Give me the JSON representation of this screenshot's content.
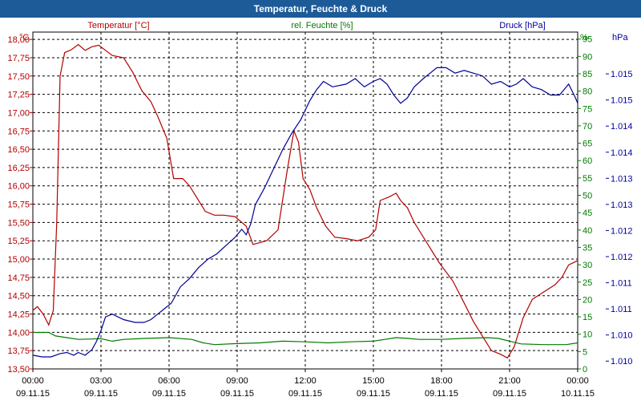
{
  "window": {
    "title": "Temperatur, Feuchte & Druck"
  },
  "chart_data": {
    "type": "line",
    "title": "Temperatur, Feuchte & Druck",
    "colors": {
      "temperature": "#b30000",
      "humidity": "#007a00",
      "pressure": "#00009c",
      "grid": "#000000"
    },
    "x_ticks": [
      {
        "time": "00:00",
        "date": "09.11.15"
      },
      {
        "time": "03:00",
        "date": "09.11.15"
      },
      {
        "time": "06:00",
        "date": "09.11.15"
      },
      {
        "time": "09:00",
        "date": "09.11.15"
      },
      {
        "time": "12:00",
        "date": "09.11.15"
      },
      {
        "time": "15:00",
        "date": "09.11.15"
      },
      {
        "time": "18:00",
        "date": "09.11.15"
      },
      {
        "time": "21:00",
        "date": "09.11.15"
      },
      {
        "time": "00:00",
        "date": "10.11.15"
      }
    ],
    "xlim_hours": [
      0,
      24
    ],
    "axes": {
      "temperature": {
        "label": "Temperatur [°C]",
        "unit": "°C",
        "min": 13.5,
        "max": 18.1,
        "ticks": [
          "13,50",
          "13,75",
          "14,00",
          "14,25",
          "14,50",
          "14,75",
          "15,00",
          "15,25",
          "15,50",
          "15,75",
          "16,00",
          "16,25",
          "16,50",
          "16,75",
          "17,00",
          "17,25",
          "17,50",
          "17,75",
          "18,00"
        ]
      },
      "humidity": {
        "label": "rel. Feuchte [%]",
        "unit": "%",
        "min": 0,
        "max": 97,
        "ticks": [
          "0",
          "5",
          "10",
          "15",
          "20",
          "25",
          "30",
          "35",
          "40",
          "45",
          "50",
          "55",
          "60",
          "65",
          "70",
          "75",
          "80",
          "85",
          "90",
          "95"
        ]
      },
      "pressure": {
        "label": "Druck [hPa]",
        "unit": "hPa",
        "min": 1009.6,
        "max": 1015.75,
        "ticks": [
          "1.010",
          "1.010",
          "1.011",
          "1.011",
          "1.012",
          "1.012",
          "1.013",
          "1.013",
          "1.014",
          "1.014",
          "1.015",
          "1.015"
        ]
      }
    },
    "series": [
      {
        "name": "Temperatur",
        "axis": "temperature",
        "points": [
          [
            0,
            14.3
          ],
          [
            0.2,
            14.35
          ],
          [
            0.45,
            14.25
          ],
          [
            0.7,
            14.1
          ],
          [
            0.9,
            14.3
          ],
          [
            1.05,
            15.5
          ],
          [
            1.2,
            17.5
          ],
          [
            1.4,
            17.82
          ],
          [
            1.7,
            17.86
          ],
          [
            2.0,
            17.93
          ],
          [
            2.3,
            17.85
          ],
          [
            2.6,
            17.9
          ],
          [
            2.9,
            17.92
          ],
          [
            3.2,
            17.85
          ],
          [
            3.5,
            17.78
          ],
          [
            4.0,
            17.75
          ],
          [
            4.4,
            17.55
          ],
          [
            4.8,
            17.3
          ],
          [
            5.2,
            17.15
          ],
          [
            5.5,
            16.95
          ],
          [
            5.9,
            16.65
          ],
          [
            6.2,
            16.1
          ],
          [
            6.6,
            16.1
          ],
          [
            6.9,
            16.0
          ],
          [
            7.2,
            15.85
          ],
          [
            7.6,
            15.65
          ],
          [
            8.0,
            15.6
          ],
          [
            8.4,
            15.6
          ],
          [
            8.9,
            15.58
          ],
          [
            9.4,
            15.45
          ],
          [
            9.7,
            15.2
          ],
          [
            10.3,
            15.25
          ],
          [
            10.8,
            15.4
          ],
          [
            11.2,
            16.2
          ],
          [
            11.5,
            16.75
          ],
          [
            11.7,
            16.6
          ],
          [
            11.9,
            16.1
          ],
          [
            12.2,
            15.95
          ],
          [
            12.5,
            15.7
          ],
          [
            12.9,
            15.45
          ],
          [
            13.3,
            15.3
          ],
          [
            13.8,
            15.28
          ],
          [
            14.3,
            15.25
          ],
          [
            14.8,
            15.3
          ],
          [
            15.1,
            15.4
          ],
          [
            15.3,
            15.8
          ],
          [
            15.7,
            15.85
          ],
          [
            16.0,
            15.9
          ],
          [
            16.2,
            15.8
          ],
          [
            16.5,
            15.7
          ],
          [
            16.8,
            15.5
          ],
          [
            17.3,
            15.25
          ],
          [
            17.9,
            14.95
          ],
          [
            18.5,
            14.7
          ],
          [
            19.0,
            14.4
          ],
          [
            19.4,
            14.15
          ],
          [
            19.8,
            13.95
          ],
          [
            20.2,
            13.75
          ],
          [
            20.6,
            13.7
          ],
          [
            20.9,
            13.65
          ],
          [
            21.2,
            13.8
          ],
          [
            21.6,
            14.2
          ],
          [
            22.0,
            14.45
          ],
          [
            22.5,
            14.55
          ],
          [
            23.0,
            14.65
          ],
          [
            23.3,
            14.75
          ],
          [
            23.6,
            14.92
          ],
          [
            24.0,
            14.98
          ]
        ]
      },
      {
        "name": "rel. Feuchte",
        "axis": "humidity",
        "points": [
          [
            0,
            10.5
          ],
          [
            0.7,
            10.5
          ],
          [
            1.0,
            9.5
          ],
          [
            1.5,
            9.0
          ],
          [
            2.0,
            8.5
          ],
          [
            3.0,
            8.7
          ],
          [
            3.5,
            8.0
          ],
          [
            4.0,
            8.5
          ],
          [
            5.0,
            8.8
          ],
          [
            6.0,
            9.0
          ],
          [
            7.0,
            8.5
          ],
          [
            7.5,
            7.5
          ],
          [
            8.0,
            7.0
          ],
          [
            9.0,
            7.3
          ],
          [
            10.0,
            7.5
          ],
          [
            11.0,
            8.0
          ],
          [
            12.0,
            7.8
          ],
          [
            13.0,
            7.5
          ],
          [
            14.0,
            7.8
          ],
          [
            15.0,
            8.0
          ],
          [
            15.5,
            8.5
          ],
          [
            16.0,
            9.0
          ],
          [
            16.5,
            8.8
          ],
          [
            17.0,
            8.5
          ],
          [
            18.0,
            8.5
          ],
          [
            19.0,
            8.8
          ],
          [
            20.0,
            9.0
          ],
          [
            20.5,
            8.8
          ],
          [
            21.0,
            8.0
          ],
          [
            21.5,
            7.2
          ],
          [
            22.5,
            7.0
          ],
          [
            23.5,
            7.0
          ],
          [
            24.0,
            7.5
          ]
        ]
      },
      {
        "name": "Druck",
        "axis": "pressure",
        "points": [
          [
            0,
            1009.85
          ],
          [
            0.4,
            1009.82
          ],
          [
            0.8,
            1009.82
          ],
          [
            1.2,
            1009.88
          ],
          [
            1.5,
            1009.9
          ],
          [
            1.8,
            1009.85
          ],
          [
            2.0,
            1009.9
          ],
          [
            2.3,
            1009.85
          ],
          [
            2.6,
            1009.95
          ],
          [
            2.8,
            1010.1
          ],
          [
            3.0,
            1010.3
          ],
          [
            3.2,
            1010.55
          ],
          [
            3.5,
            1010.6
          ],
          [
            4.0,
            1010.5
          ],
          [
            4.5,
            1010.45
          ],
          [
            4.9,
            1010.45
          ],
          [
            5.2,
            1010.5
          ],
          [
            5.5,
            1010.6
          ],
          [
            5.8,
            1010.7
          ],
          [
            6.1,
            1010.8
          ],
          [
            6.5,
            1011.1
          ],
          [
            6.9,
            1011.25
          ],
          [
            7.3,
            1011.45
          ],
          [
            7.7,
            1011.6
          ],
          [
            8.1,
            1011.7
          ],
          [
            8.5,
            1011.85
          ],
          [
            8.9,
            1012.0
          ],
          [
            9.2,
            1012.15
          ],
          [
            9.4,
            1012.05
          ],
          [
            9.6,
            1012.25
          ],
          [
            9.8,
            1012.6
          ],
          [
            10.2,
            1012.9
          ],
          [
            10.6,
            1013.25
          ],
          [
            11.0,
            1013.6
          ],
          [
            11.4,
            1013.9
          ],
          [
            11.8,
            1014.15
          ],
          [
            12.2,
            1014.5
          ],
          [
            12.5,
            1014.7
          ],
          [
            12.8,
            1014.85
          ],
          [
            13.2,
            1014.75
          ],
          [
            13.8,
            1014.8
          ],
          [
            14.2,
            1014.9
          ],
          [
            14.6,
            1014.75
          ],
          [
            15.0,
            1014.85
          ],
          [
            15.3,
            1014.9
          ],
          [
            15.6,
            1014.8
          ],
          [
            15.9,
            1014.6
          ],
          [
            16.2,
            1014.45
          ],
          [
            16.5,
            1014.55
          ],
          [
            16.8,
            1014.75
          ],
          [
            17.2,
            1014.9
          ],
          [
            17.5,
            1015.0
          ],
          [
            17.8,
            1015.1
          ],
          [
            18.2,
            1015.1
          ],
          [
            18.6,
            1015.0
          ],
          [
            19.0,
            1015.05
          ],
          [
            19.4,
            1015.0
          ],
          [
            19.8,
            1014.95
          ],
          [
            20.2,
            1014.8
          ],
          [
            20.6,
            1014.85
          ],
          [
            21.0,
            1014.75
          ],
          [
            21.3,
            1014.8
          ],
          [
            21.6,
            1014.9
          ],
          [
            22.0,
            1014.75
          ],
          [
            22.4,
            1014.7
          ],
          [
            22.8,
            1014.6
          ],
          [
            23.2,
            1014.6
          ],
          [
            23.6,
            1014.8
          ],
          [
            23.9,
            1014.55
          ],
          [
            24.0,
            1014.45
          ]
        ]
      }
    ]
  }
}
